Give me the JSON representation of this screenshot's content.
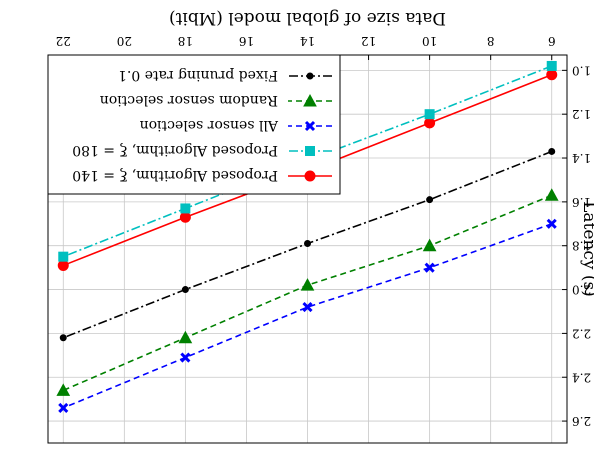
{
  "chart_data": {
    "type": "line",
    "orientation": "rotated-180",
    "xlabel": "Data size of global model (Mbit)",
    "ylabel": "Latency (s)",
    "xlim": [
      5.5,
      22.5
    ],
    "ylim": [
      0.93,
      2.7
    ],
    "xticks": [
      6,
      8,
      10,
      12,
      14,
      16,
      18,
      20,
      22
    ],
    "xtick_labels": [
      "6",
      "8",
      "10",
      "12",
      "14",
      "16",
      "18",
      "20",
      "22"
    ],
    "yticks": [
      1.0,
      1.2,
      1.4,
      1.6,
      1.8,
      2.0,
      2.2,
      2.4,
      2.6
    ],
    "ytick_labels": [
      "1.0",
      "1.2",
      "1.4",
      "1.6",
      "1.8",
      "2.0",
      "2.2",
      "2.4",
      "2.6"
    ],
    "grid": true,
    "legend_position": "bottom-left",
    "x": [
      6,
      10,
      14,
      18,
      22
    ],
    "series": [
      {
        "name": "Proposed Algorithm, ξ = 140",
        "values": [
          1.02,
          1.24,
          1.46,
          1.67,
          1.89
        ],
        "color": "#ff0000",
        "dash": "solid",
        "marker": "circle"
      },
      {
        "name": "Proposed Algorithm, ξ = 180",
        "values": [
          0.98,
          1.2,
          1.41,
          1.63,
          1.85
        ],
        "color": "#00bfbf",
        "dash": "dashdot",
        "marker": "square"
      },
      {
        "name": "All sensor selection",
        "values": [
          1.7,
          1.9,
          2.08,
          2.31,
          2.54
        ],
        "color": "#0000ff",
        "dash": "dashed",
        "marker": "x"
      },
      {
        "name": "Random sensor selection",
        "values": [
          1.57,
          1.8,
          1.98,
          2.22,
          2.46
        ],
        "color": "#008000",
        "dash": "dashed",
        "marker": "triangle"
      },
      {
        "name": "Fixed pruning rate 0.1",
        "values": [
          1.37,
          1.59,
          1.79,
          2.0,
          2.22
        ],
        "color": "#000000",
        "dash": "dashdot",
        "marker": "dot"
      }
    ]
  }
}
